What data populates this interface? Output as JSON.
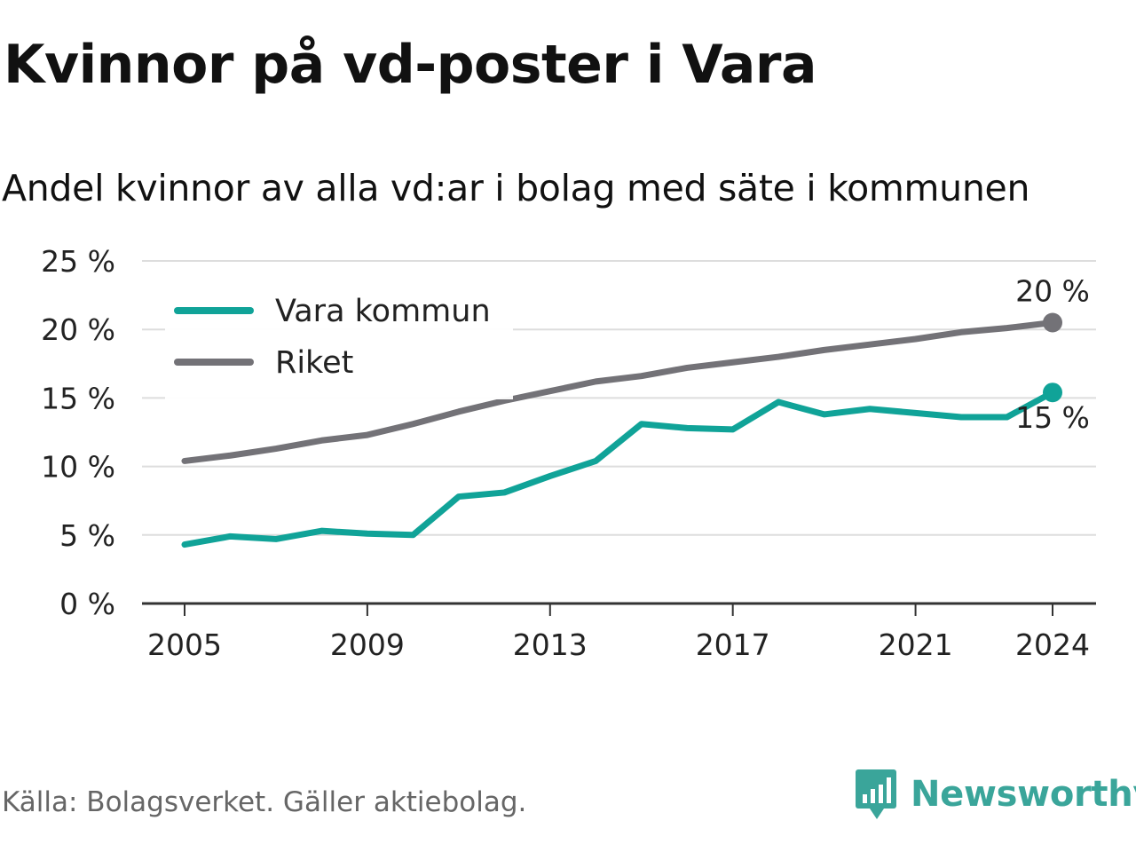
{
  "title": "Kvinnor på vd-poster i Vara",
  "subtitle": "Andel kvinnor av alla vd:ar i bolag med säte i kommunen",
  "source": "Källa: Bolagsverket. Gäller aktiebolag.",
  "brand": {
    "name": "Newsworthy",
    "icon": "newsworthy-logo-icon",
    "color": "#3aa59a"
  },
  "chart_data": {
    "type": "line",
    "x": [
      2005,
      2006,
      2007,
      2008,
      2009,
      2010,
      2011,
      2012,
      2013,
      2014,
      2015,
      2016,
      2017,
      2018,
      2019,
      2020,
      2021,
      2022,
      2023,
      2024
    ],
    "x_ticks": [
      "2005",
      "2009",
      "2013",
      "2017",
      "2021",
      "2024"
    ],
    "y_ticks": [
      "0 %",
      "5 %",
      "10 %",
      "15 %",
      "20 %",
      "25 %"
    ],
    "ylim": [
      0,
      25
    ],
    "grid": true,
    "legend": "top-left",
    "series": [
      {
        "name": "Vara kommun",
        "color": "#10a398",
        "values": [
          4.3,
          4.9,
          4.7,
          5.3,
          5.1,
          5.0,
          7.8,
          8.1,
          9.3,
          10.4,
          13.1,
          12.8,
          12.7,
          14.7,
          13.8,
          14.2,
          13.9,
          13.6,
          13.6,
          15.4
        ],
        "end_label": "15 %"
      },
      {
        "name": "Riket",
        "color": "#737277",
        "values": [
          10.4,
          10.8,
          11.3,
          11.9,
          12.3,
          13.1,
          14.0,
          14.8,
          15.5,
          16.2,
          16.6,
          17.2,
          17.6,
          18.0,
          18.5,
          18.9,
          19.3,
          19.8,
          20.1,
          20.5
        ],
        "end_label": "20 %"
      }
    ]
  }
}
